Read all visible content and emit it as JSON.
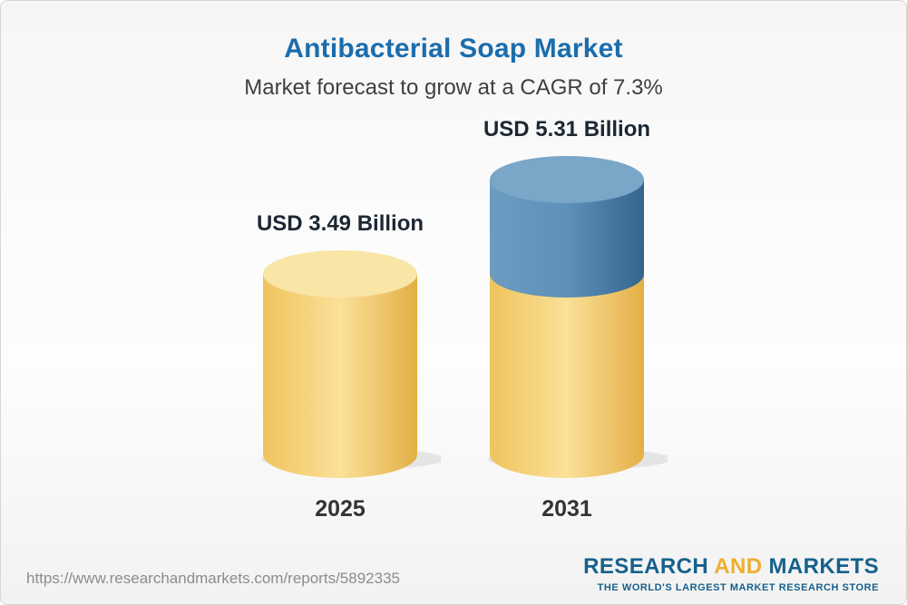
{
  "chart_data": {
    "type": "bar",
    "variant": "3d-cylinder",
    "title": "Antibacterial Soap Market",
    "subtitle": "Market forecast to grow at a CAGR of 7.3%",
    "unit": "USD Billion",
    "cagr_pct": 7.3,
    "categories": [
      "2025",
      "2031"
    ],
    "values": [
      3.49,
      5.31
    ],
    "value_labels": [
      "USD 3.49 Billion",
      "USD 5.31 Billion"
    ],
    "bars": [
      {
        "category": "2025",
        "label": "USD 3.49 Billion",
        "segments": [
          {
            "value": 3.49,
            "color": "gold"
          }
        ]
      },
      {
        "category": "2031",
        "label": "USD 5.31 Billion",
        "segments": [
          {
            "value": 3.49,
            "color": "gold"
          },
          {
            "value": 1.82,
            "color": "blue"
          }
        ]
      }
    ],
    "colors": {
      "gold": {
        "stops": [
          "#EFC45E",
          "#FBE098",
          "#E3AF46"
        ],
        "cap": "#F9E5A6"
      },
      "blue": {
        "stops": [
          "#6C9CC1",
          "#5F90B8",
          "#33658E"
        ],
        "cap": "#7AA6C8"
      }
    },
    "legend_position": "none",
    "grid": false
  },
  "footer": {
    "url": "https://www.researchandmarkets.com/reports/5892335",
    "logo": {
      "part1": "RESEARCH",
      "part2": "AND",
      "part3": "MARKETS",
      "tagline": "THE WORLD'S LARGEST MARKET RESEARCH STORE"
    }
  }
}
